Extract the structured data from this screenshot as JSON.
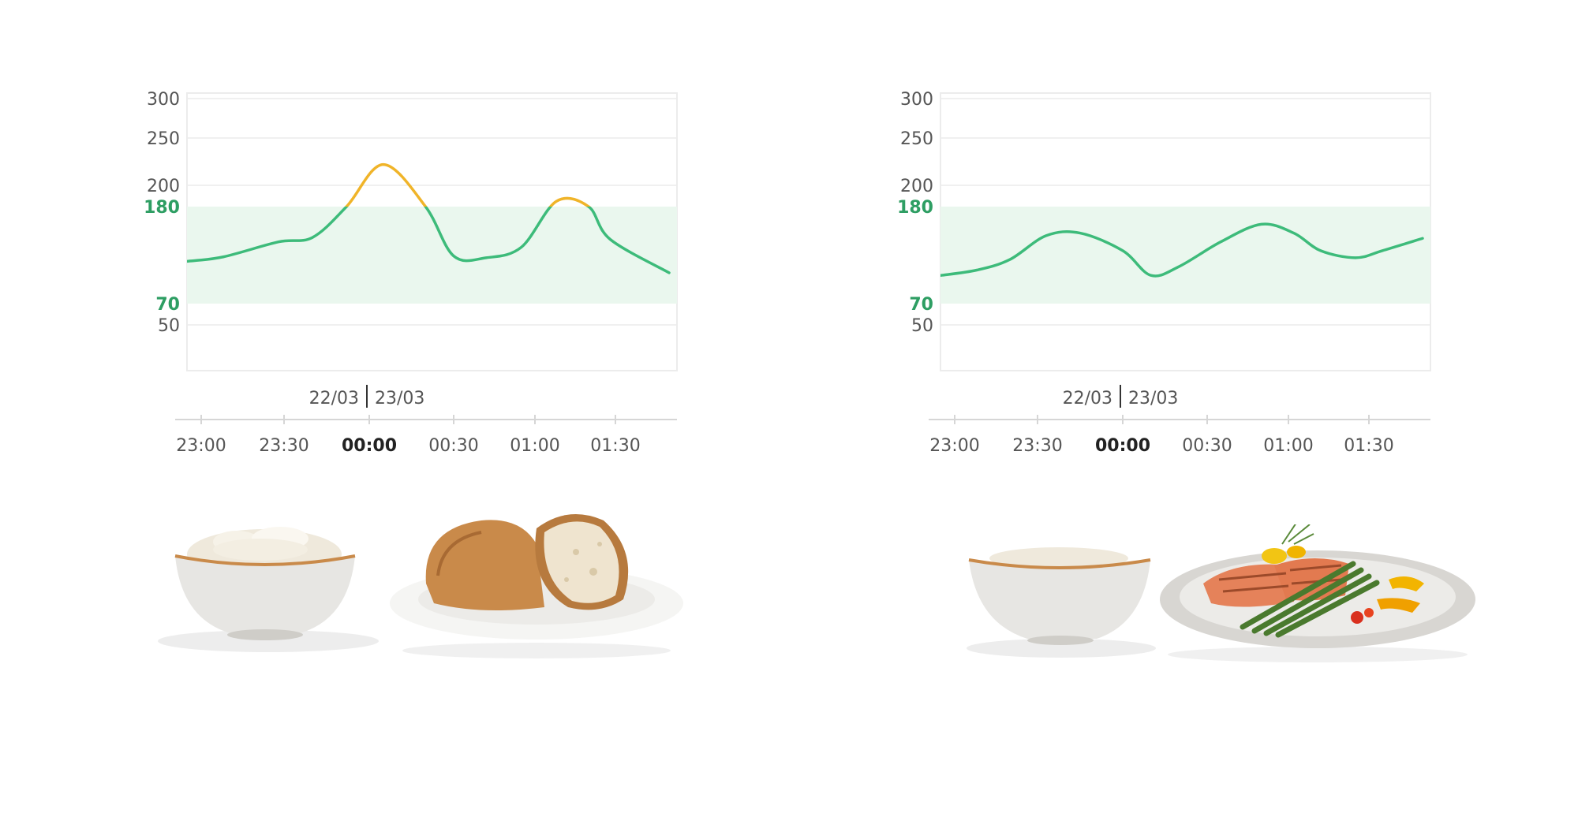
{
  "colors": {
    "in_range": "#3dbb7a",
    "high": "#f0b429",
    "band": "#eaf7ee",
    "grid": "#ececec",
    "band_label": "#2e9e63"
  },
  "chart_data": [
    {
      "type": "line",
      "y_ticks": [
        "300",
        "250",
        "200",
        "180",
        "70",
        "50"
      ],
      "band": {
        "low": 70,
        "high": 180,
        "low_label": "70",
        "high_label": "180"
      },
      "date_left": "22/03",
      "date_right": "23/03",
      "x_ticks": [
        "23:00",
        "23:30",
        "00:00",
        "00:30",
        "01:00",
        "01:30"
      ],
      "x_tick_bold": "00:00",
      "x": [
        "22:55",
        "23:08",
        "23:28",
        "23:40",
        "23:52",
        "00:05",
        "00:20",
        "00:30",
        "00:42",
        "00:55",
        "01:08",
        "01:20",
        "01:28",
        "01:50"
      ],
      "y": [
        118,
        123,
        140,
        145,
        180,
        222,
        180,
        124,
        122,
        134,
        185,
        180,
        143,
        105
      ],
      "ylim": [
        0,
        300
      ]
    },
    {
      "type": "line",
      "y_ticks": [
        "300",
        "250",
        "200",
        "180",
        "70",
        "50"
      ],
      "band": {
        "low": 70,
        "high": 180,
        "low_label": "70",
        "high_label": "180"
      },
      "date_left": "22/03",
      "date_right": "23/03",
      "x_ticks": [
        "23:00",
        "23:30",
        "00:00",
        "00:30",
        "01:00",
        "01:30"
      ],
      "x_tick_bold": "00:00",
      "x": [
        "22:55",
        "23:08",
        "23:20",
        "23:33",
        "23:45",
        "00:00",
        "00:10",
        "00:20",
        "00:35",
        "00:50",
        "01:02",
        "01:12",
        "01:25",
        "01:35",
        "01:50"
      ],
      "y": [
        102,
        108,
        120,
        147,
        150,
        130,
        102,
        112,
        140,
        160,
        150,
        130,
        122,
        130,
        144
      ],
      "ylim": [
        0,
        300
      ]
    }
  ],
  "food_left": {
    "items": [
      "rice-bowl",
      "bread-plate"
    ]
  },
  "food_right": {
    "items": [
      "rice-bowl",
      "salmon-plate"
    ]
  }
}
